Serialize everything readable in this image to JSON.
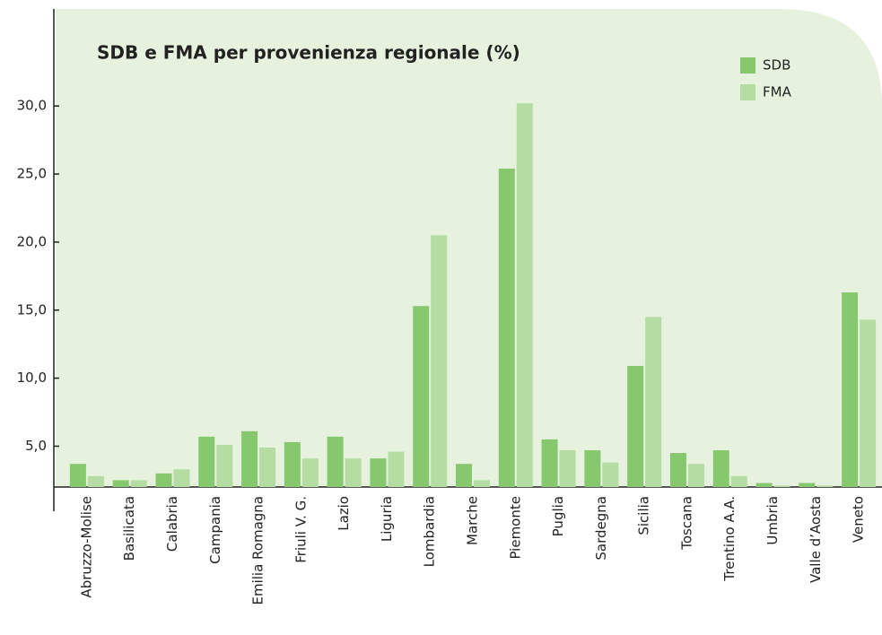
{
  "chart_data": {
    "type": "bar",
    "title": "SDB e FMA per provenienza regionale (%)",
    "categories": [
      "Abruzzo-Molise",
      "Basilicata",
      "Calabria",
      "Campania",
      "Emilia Romagna",
      "Friuli V. G.",
      "Lazio",
      "Liguria",
      "Lombardia",
      "Marche",
      "Piemonte",
      "Puglia",
      "Sardegna",
      "Sicilia",
      "Toscana",
      "Trentino A.A.",
      "Umbria",
      "Valle d’Aosta",
      "Veneto"
    ],
    "series": [
      {
        "name": "SDB",
        "color": "#86c86e",
        "values": [
          3.7,
          2.5,
          3.0,
          5.7,
          6.1,
          5.3,
          5.7,
          4.1,
          15.3,
          3.7,
          25.4,
          5.5,
          4.7,
          10.9,
          4.5,
          4.7,
          2.3,
          2.3,
          16.3
        ]
      },
      {
        "name": "FMA",
        "color": "#b5dca3",
        "values": [
          2.8,
          2.5,
          3.3,
          5.1,
          4.9,
          4.1,
          4.1,
          4.6,
          20.5,
          2.5,
          30.2,
          4.7,
          3.8,
          14.5,
          3.7,
          2.8,
          2.1,
          2.1,
          14.3
        ]
      }
    ],
    "ylim": [
      2,
      37
    ],
    "yticks": [
      {
        "value": 5,
        "label": "5,0"
      },
      {
        "value": 10,
        "label": "10,0"
      },
      {
        "value": 15,
        "label": "15,0"
      },
      {
        "value": 20,
        "label": "20,0"
      },
      {
        "value": 25,
        "label": "25,0"
      },
      {
        "value": 30,
        "label": "30,0"
      }
    ],
    "legend": "top-right"
  }
}
